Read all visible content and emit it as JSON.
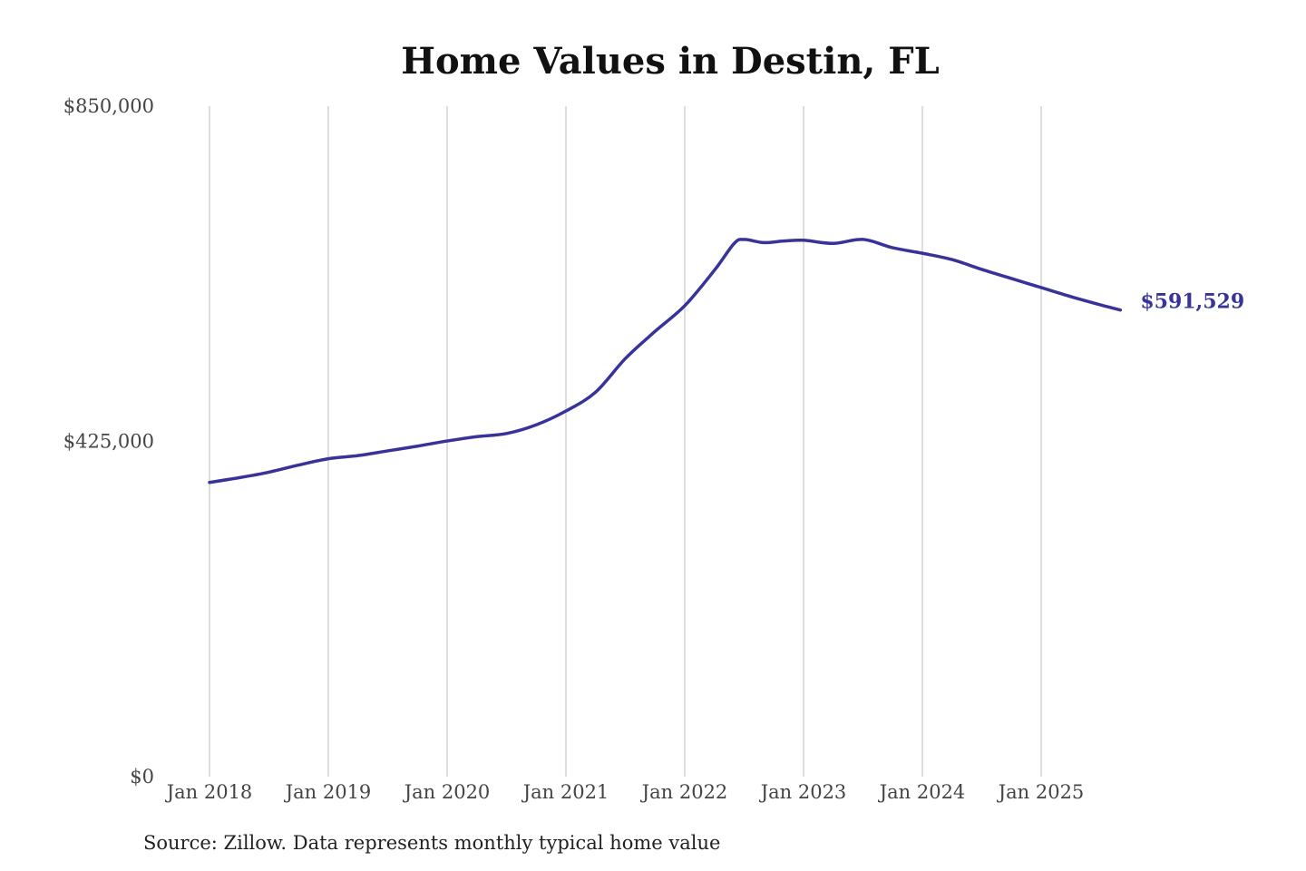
{
  "chart_data": {
    "type": "line",
    "title": "Home Values in Destin, FL",
    "source": "Source: Zillow. Data represents monthly typical home value",
    "xlabel": "",
    "ylabel": "",
    "ylim": [
      0,
      850000
    ],
    "y_ticks": [
      0,
      425000,
      850000
    ],
    "y_tick_labels": [
      "$0",
      "$425,000",
      "$850,000"
    ],
    "x_tick_labels": [
      "Jan 2018",
      "Jan 2019",
      "Jan 2020",
      "Jan 2021",
      "Jan 2022",
      "Jan 2023",
      "Jan 2024",
      "Jan 2025"
    ],
    "grid": "vertical",
    "line_color": "#37339a",
    "end_label": "$591,529",
    "series": [
      {
        "x": [
          "2018-01",
          "2018-04",
          "2018-07",
          "2018-10",
          "2019-01",
          "2019-04",
          "2019-07",
          "2019-10",
          "2020-01",
          "2020-04",
          "2020-07",
          "2020-10",
          "2021-01",
          "2021-04",
          "2021-07",
          "2021-10",
          "2022-01",
          "2022-04",
          "2022-06",
          "2022-07",
          "2022-09",
          "2022-11",
          "2023-01",
          "2023-04",
          "2023-07",
          "2023-10",
          "2024-01",
          "2024-04",
          "2024-07",
          "2024-10",
          "2025-01",
          "2025-04",
          "2025-07",
          "2025-09"
        ],
        "values": [
          373000,
          379000,
          386000,
          395000,
          403000,
          407000,
          413000,
          419000,
          425500,
          431000,
          435000,
          446000,
          463500,
          487500,
          530000,
          564500,
          597000,
          642000,
          676000,
          681000,
          677000,
          679000,
          680000,
          676000,
          681000,
          670500,
          663500,
          655500,
          643000,
          631500,
          620000,
          608500,
          598000,
          591529
        ]
      }
    ]
  }
}
